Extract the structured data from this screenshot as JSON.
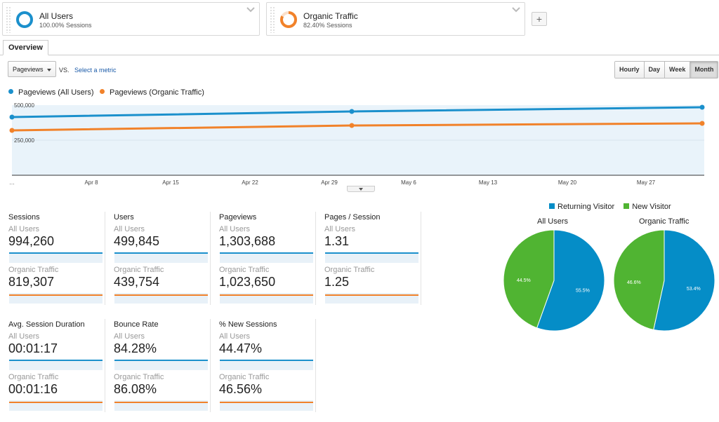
{
  "segments": [
    {
      "name": "All Users",
      "sessions": "100.00% Sessions",
      "color": "#1b90cc",
      "fraction": 1.0
    },
    {
      "name": "Organic Traffic",
      "sessions": "82.40% Sessions",
      "color": "#f1822a",
      "fraction": 0.824
    }
  ],
  "add_segment_label": "+",
  "tabs": [
    "Overview"
  ],
  "metric_select": {
    "value": "Pageviews",
    "vs": "VS.",
    "select_metric": "Select a metric"
  },
  "time_buttons": [
    "Hourly",
    "Day",
    "Week",
    "Month"
  ],
  "active_time_button": "Month",
  "legend": [
    {
      "label": "Pageviews (All Users)",
      "color": "#1b90cc"
    },
    {
      "label": "Pageviews (Organic Traffic)",
      "color": "#f1822a"
    }
  ],
  "chart_data": {
    "type": "line",
    "x": [
      "…",
      "Apr 8",
      "Apr 15",
      "Apr 22",
      "Apr 29",
      "May 6",
      "May 13",
      "May 20",
      "May 27"
    ],
    "y_ticks": [
      "500,000",
      "250,000"
    ],
    "ylim": [
      0,
      500000
    ],
    "series": [
      {
        "name": "Pageviews (All Users)",
        "color": "#1b90cc",
        "points": [
          [
            0,
            415000
          ],
          [
            1,
            455000
          ],
          [
            2,
            485000
          ]
        ]
      },
      {
        "name": "Pageviews (Organic Traffic)",
        "color": "#f1822a",
        "points": [
          [
            0,
            320000
          ],
          [
            1,
            355000
          ],
          [
            2,
            370000
          ]
        ]
      }
    ]
  },
  "metrics": [
    {
      "title": "Sessions",
      "all_label": "All Users",
      "all_value": "994,260",
      "org_label": "Organic Traffic",
      "org_value": "819,307"
    },
    {
      "title": "Users",
      "all_label": "All Users",
      "all_value": "499,845",
      "org_label": "Organic Traffic",
      "org_value": "439,754"
    },
    {
      "title": "Pageviews",
      "all_label": "All Users",
      "all_value": "1,303,688",
      "org_label": "Organic Traffic",
      "org_value": "1,023,650"
    },
    {
      "title": "Pages / Session",
      "all_label": "All Users",
      "all_value": "1.31",
      "org_label": "Organic Traffic",
      "org_value": "1.25"
    },
    {
      "title": "Avg. Session Duration",
      "all_label": "All Users",
      "all_value": "00:01:17",
      "org_label": "Organic Traffic",
      "org_value": "00:01:16"
    },
    {
      "title": "Bounce Rate",
      "all_label": "All Users",
      "all_value": "84.28%",
      "org_label": "Organic Traffic",
      "org_value": "86.08%"
    },
    {
      "title": "% New Sessions",
      "all_label": "All Users",
      "all_value": "44.47%",
      "org_label": "Organic Traffic",
      "org_value": "46.56%"
    }
  ],
  "pie_legend": [
    {
      "label": "Returning Visitor",
      "color": "#058dc7"
    },
    {
      "label": "New Visitor",
      "color": "#50b432"
    }
  ],
  "pies": [
    {
      "title": "All Users",
      "returning": 55.5,
      "new": 44.5,
      "returning_label": "55.5%",
      "new_label": "44.5%"
    },
    {
      "title": "Organic Traffic",
      "returning": 53.4,
      "new": 46.6,
      "returning_label": "53.4%",
      "new_label": "46.6%"
    }
  ]
}
